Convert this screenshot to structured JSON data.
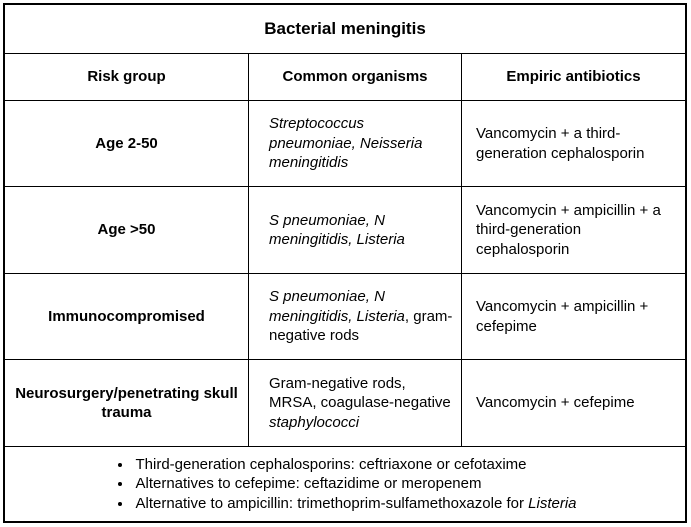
{
  "title": "Bacterial meningitis",
  "headers": {
    "risk_group": "Risk group",
    "organisms": "Common organisms",
    "antibiotics": "Empiric antibiotics"
  },
  "rows": [
    {
      "risk_group": "Age 2-50",
      "organisms": [
        {
          "text": "Streptococcus pneumoniae, Neisseria meningitidis",
          "italic": true
        }
      ],
      "antibiotics": "Vancomycin + a third-generation cephalosporin"
    },
    {
      "risk_group": "Age >50",
      "organisms": [
        {
          "text": "S pneumoniae, N meningitidis, Listeria",
          "italic": true
        }
      ],
      "antibiotics": "Vancomycin + ampicillin + a third-generation cephalosporin"
    },
    {
      "risk_group": "Immunocompromised",
      "organisms": [
        {
          "text": "S pneumoniae, N meningitidis, Listeria",
          "italic": true
        },
        {
          "text": ", gram-negative rods",
          "italic": false
        }
      ],
      "antibiotics": "Vancomycin + ampicillin + cefepime"
    },
    {
      "risk_group": "Neurosurgery/penetrating skull trauma",
      "organisms": [
        {
          "text": "Gram-negative rods, MRSA, coagulase-negative ",
          "italic": false
        },
        {
          "text": "staphylococci",
          "italic": true
        }
      ],
      "antibiotics": "Vancomycin + cefepime"
    }
  ],
  "notes": [
    [
      {
        "text": "Third-generation cephalosporins: ceftriaxone or cefotaxime",
        "italic": false
      }
    ],
    [
      {
        "text": "Alternatives to cefepime: ceftazidime or meropenem",
        "italic": false
      }
    ],
    [
      {
        "text": "Alternative to ampicillin: trimethoprim-sulfamethoxazole for ",
        "italic": false
      },
      {
        "text": "Listeria",
        "italic": true
      }
    ]
  ]
}
